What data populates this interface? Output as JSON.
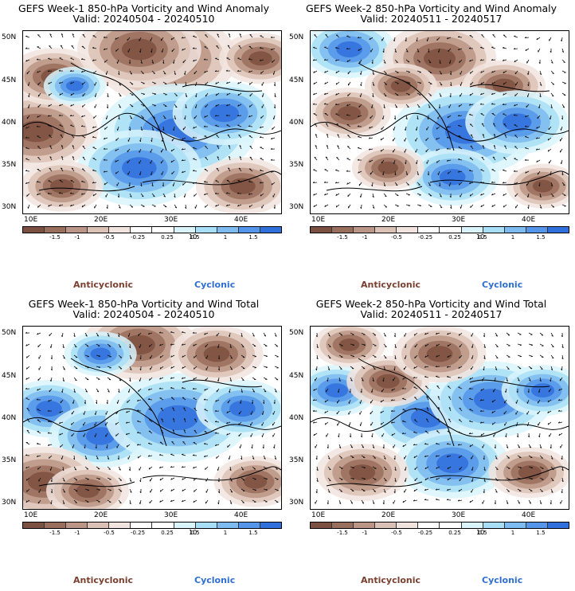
{
  "colors": {
    "anticyclonic": "#7a4030",
    "cyclonic": "#2f6fd1",
    "scale": [
      "#7c5040",
      "#9a6e5c",
      "#bb9585",
      "#dcc2b6",
      "#f1e4de",
      "#ffffff",
      "#ffffff",
      "#d9f4fb",
      "#a9dff6",
      "#7dbbf0",
      "#5596ea",
      "#3070dd"
    ]
  },
  "axes": {
    "y_labels": [
      "50N",
      "45N",
      "40N",
      "35N",
      "30N"
    ],
    "x_labels": [
      "10E",
      "20E",
      "30E",
      "40E"
    ]
  },
  "colorbar": {
    "ticks": [
      "-1.5",
      "-1",
      "-0.5",
      "-0.25",
      "0.25",
      "0.5",
      "1",
      "1.5"
    ],
    "unit": "10"
  },
  "legend": {
    "anticyclonic": "Anticyclonic",
    "cyclonic": "Cyclonic"
  },
  "panels": [
    {
      "title": "GEFS Week-1 850-hPa Vorticity and Wind Anomaly",
      "valid": "Valid: 20240504 - 20240510"
    },
    {
      "title": "GEFS Week-2 850-hPa Vorticity and Wind Anomaly",
      "valid": "Valid: 20240511 - 20240517"
    },
    {
      "title": "GEFS Week-1 850-hPa Vorticity and Wind Total",
      "valid": "Valid: 20240504 - 20240510"
    },
    {
      "title": "GEFS Week-2 850-hPa Vorticity and Wind Total",
      "valid": "Valid: 20240511 - 20240517"
    }
  ]
}
